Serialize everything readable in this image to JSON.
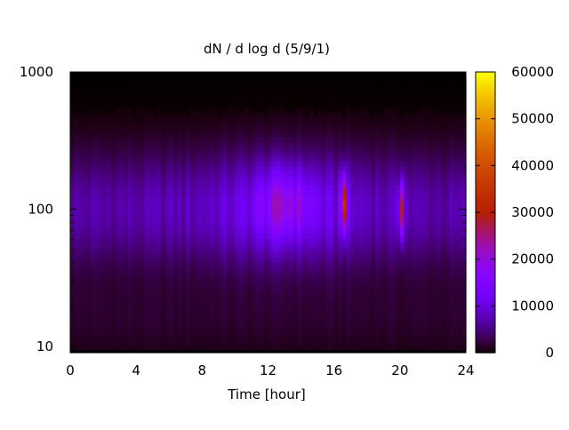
{
  "chart_data": {
    "type": "heatmap",
    "title": "dN / d log d (5/9/1)",
    "xlabel": "Time [hour]",
    "ylabel": "",
    "xlim": [
      0,
      24
    ],
    "ylim": [
      9,
      1000
    ],
    "y_scale": "log",
    "x_ticks": [
      0,
      4,
      8,
      12,
      16,
      20,
      24
    ],
    "x_tick_labels": [
      "0",
      "4",
      "8",
      "12",
      "16",
      "20",
      "24"
    ],
    "y_ticks": [
      10,
      100,
      1000
    ],
    "y_tick_labels": [
      "10",
      "100",
      "1000"
    ],
    "colorbar": {
      "range": [
        0,
        60000
      ],
      "ticks": [
        0,
        10000,
        20000,
        30000,
        40000,
        50000,
        60000
      ],
      "tick_labels": [
        "0",
        "10000",
        "20000",
        "30000",
        "40000",
        "50000",
        "60000"
      ],
      "palette": "gnuplot (black-purple-red-yellow)"
    },
    "data_y_range": [
      9.5,
      900
    ],
    "features": [
      {
        "time": 16.6,
        "peak_diameter": 110,
        "peak_value": 38000
      },
      {
        "time": 20.1,
        "peak_diameter": 100,
        "peak_value": 32000
      },
      {
        "time": 13.0,
        "peak_diameter": 110,
        "peak_value": 15000
      }
    ],
    "baseline": {
      "peak_diameter": 100,
      "typical_value": 9000
    }
  }
}
